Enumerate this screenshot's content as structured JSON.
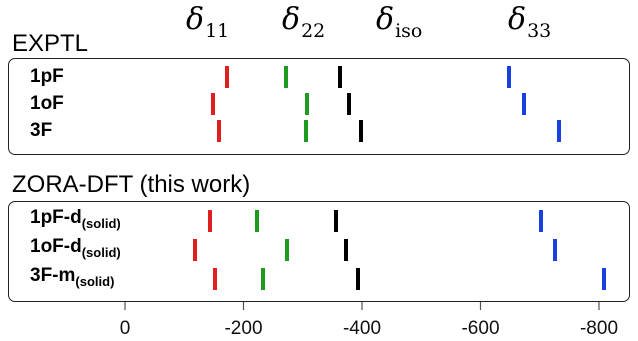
{
  "colors": {
    "d11": "#e02020",
    "d22": "#1e9a1e",
    "diso": "#000000",
    "d33": "#1a3fe0"
  },
  "legend": [
    {
      "key": "d11",
      "symbol": "δ",
      "sub": "11"
    },
    {
      "key": "d22",
      "symbol": "δ",
      "sub": "22"
    },
    {
      "key": "diso",
      "symbol": "δ",
      "sub": "iso"
    },
    {
      "key": "d33",
      "symbol": "δ",
      "sub": "33"
    }
  ],
  "chart_data": {
    "type": "scatter",
    "xlim": [
      30,
      -840
    ],
    "xticks": [
      0,
      -200,
      -400,
      -600,
      -800
    ],
    "xtick_labels": [
      "0",
      "-200",
      "-400",
      "-600",
      "-800"
    ],
    "panels": [
      {
        "title": "EXPTL",
        "rows": [
          {
            "label": "1pF",
            "label_sub": "",
            "d11": -172,
            "d22": -272,
            "diso": -363,
            "d33": -648
          },
          {
            "label": "1oF",
            "label_sub": "",
            "d11": -148,
            "d22": -308,
            "diso": -378,
            "d33": -673
          },
          {
            "label": "3F",
            "label_sub": "",
            "d11": -158,
            "d22": -305,
            "diso": -398,
            "d33": -732
          }
        ]
      },
      {
        "title": "ZORA-DFT (this work)",
        "rows": [
          {
            "label": "1pF-d",
            "label_sub": "(solid)",
            "d11": -143,
            "d22": -222,
            "diso": -356,
            "d33": -702
          },
          {
            "label": "1oF-d",
            "label_sub": "(solid)",
            "d11": -118,
            "d22": -273,
            "diso": -373,
            "d33": -725
          },
          {
            "label": "3F-m",
            "label_sub": "(solid)",
            "d11": -152,
            "d22": -233,
            "diso": -393,
            "d33": -808
          }
        ]
      }
    ]
  }
}
